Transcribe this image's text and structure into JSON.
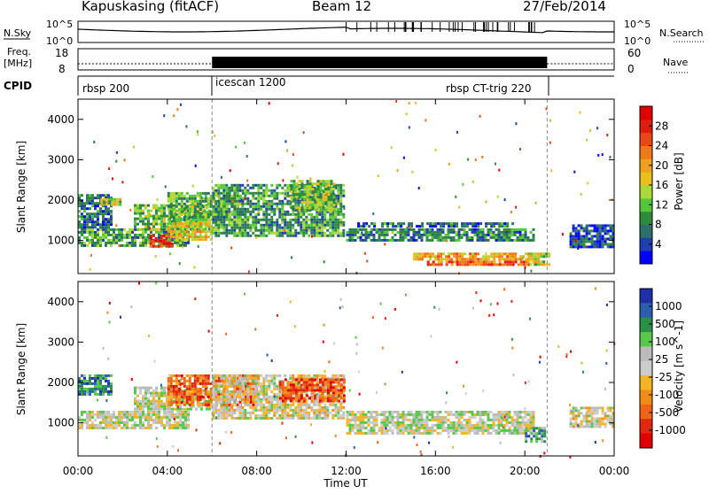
{
  "header": {
    "station": "Kapuskasing (fitACF)",
    "beam": "Beam 12",
    "date": "27/Feb/2014"
  },
  "top_panels": {
    "nsky_label": "N.Sky",
    "nsearch_label": "N.Search",
    "noise_ticks": [
      "10^5",
      "10^0"
    ],
    "freq_label": "Freq.",
    "freq_unit": "[MHz]",
    "freq_ticks": [
      "18",
      "8"
    ],
    "nave_label": "Nave",
    "nave_ticks": [
      "60",
      "0"
    ],
    "cpid_label": "CPID"
  },
  "cpid_segments": [
    {
      "name": "rbsp 200",
      "start_hour": 0,
      "end_hour": 6
    },
    {
      "name": "icescan 1200",
      "start_hour": 6,
      "end_hour": 21
    },
    {
      "name": "rbsp CT-trig 220",
      "start_hour": 6,
      "end_hour": 21
    }
  ],
  "chart_data": [
    {
      "type": "heatmap",
      "title": "Power",
      "xlabel": "",
      "ylabel": "Slant Range [km]",
      "x_ticks": [
        "00:00",
        "04:00",
        "08:00",
        "12:00",
        "16:00",
        "20:00",
        "00:00"
      ],
      "x_range_hours": [
        0,
        24
      ],
      "y_ticks": [
        1000,
        2000,
        3000,
        4000
      ],
      "ylim": [
        180,
        4500
      ],
      "colorbar": {
        "label": "Power [dB]",
        "ticks": [
          4,
          8,
          12,
          16,
          20,
          24,
          28
        ],
        "range": [
          0,
          32
        ],
        "colors": [
          "#0000ff",
          "#1f3fb0",
          "#2d6f6a",
          "#2e8b3a",
          "#54c83a",
          "#a8d83a",
          "#e8c01e",
          "#f0a020",
          "#f07818",
          "#e84818",
          "#e01c10",
          "#e00000"
        ]
      },
      "regions": [
        {
          "t0": 0.0,
          "t1": 5.0,
          "r0": 850,
          "r1": 1300,
          "level": 0.3
        },
        {
          "t0": 0.0,
          "t1": 1.5,
          "r0": 1300,
          "r1": 2150,
          "level": 0.2
        },
        {
          "t0": 1.0,
          "t1": 2.0,
          "r0": 1850,
          "r1": 2050,
          "level": 0.45
        },
        {
          "t0": 2.5,
          "t1": 6.0,
          "r0": 1250,
          "r1": 1900,
          "level": 0.4
        },
        {
          "t0": 3.2,
          "t1": 4.3,
          "r0": 800,
          "r1": 1150,
          "level": 0.9
        },
        {
          "t0": 4.0,
          "t1": 6.0,
          "r0": 1000,
          "r1": 1450,
          "level": 0.55
        },
        {
          "t0": 4.0,
          "t1": 7.5,
          "r0": 1500,
          "r1": 2200,
          "level": 0.35
        },
        {
          "t0": 6.0,
          "t1": 12.0,
          "r0": 1100,
          "r1": 2400,
          "level": 0.3
        },
        {
          "t0": 9.5,
          "t1": 11.5,
          "r0": 1700,
          "r1": 2500,
          "level": 0.4
        },
        {
          "t0": 12.0,
          "t1": 20.5,
          "r0": 950,
          "r1": 1300,
          "level": 0.25
        },
        {
          "t0": 12.5,
          "t1": 19.5,
          "r0": 1300,
          "r1": 1450,
          "level": 0.2
        },
        {
          "t0": 15.0,
          "t1": 20.5,
          "r0": 500,
          "r1": 700,
          "level": 0.6
        },
        {
          "t0": 15.5,
          "t1": 20.5,
          "r0": 380,
          "r1": 500,
          "level": 0.75
        },
        {
          "t0": 20.2,
          "t1": 21.2,
          "r0": 400,
          "r1": 700,
          "level": 0.45
        },
        {
          "t0": 22.0,
          "t1": 24.0,
          "r0": 800,
          "r1": 1400,
          "level": 0.15
        }
      ]
    },
    {
      "type": "heatmap",
      "title": "Velocity",
      "xlabel": "Time UT",
      "ylabel": "Slant Range [km]",
      "x_ticks": [
        "00:00",
        "04:00",
        "08:00",
        "12:00",
        "16:00",
        "20:00",
        "00:00"
      ],
      "x_range_hours": [
        0,
        24
      ],
      "y_ticks": [
        1000,
        2000,
        3000,
        4000
      ],
      "ylim": [
        180,
        4500
      ],
      "colorbar": {
        "label": "Velocity [m s^-1]",
        "ticks": [
          1000,
          500,
          100,
          25,
          -25,
          -100,
          -500,
          -1000
        ],
        "colors": [
          "#1e2fa8",
          "#2c5fb0",
          "#2e8f4a",
          "#58c84a",
          "#bbbbbb",
          "#cccccc",
          "#f5b428",
          "#f08c18",
          "#f06418",
          "#e02810",
          "#e00000"
        ]
      },
      "regions": [
        {
          "t0": 0.0,
          "t1": 5.0,
          "r0": 850,
          "r1": 1300,
          "level": 0.45
        },
        {
          "t0": 0.0,
          "t1": 1.5,
          "r0": 1700,
          "r1": 2200,
          "level": 0.2
        },
        {
          "t0": 2.5,
          "t1": 6.0,
          "r0": 1300,
          "r1": 1900,
          "level": 0.45
        },
        {
          "t0": 4.0,
          "t1": 8.0,
          "r0": 1400,
          "r1": 2200,
          "level": 0.75
        },
        {
          "t0": 6.0,
          "t1": 12.0,
          "r0": 1100,
          "r1": 2200,
          "level": 0.5
        },
        {
          "t0": 9.0,
          "t1": 12.0,
          "r0": 1500,
          "r1": 2100,
          "level": 0.8
        },
        {
          "t0": 12.0,
          "t1": 20.5,
          "r0": 700,
          "r1": 1300,
          "level": 0.45
        },
        {
          "t0": 20.0,
          "t1": 21.0,
          "r0": 500,
          "r1": 900,
          "level": 0.25
        },
        {
          "t0": 22.0,
          "t1": 24.0,
          "r0": 900,
          "r1": 1400,
          "level": 0.5
        }
      ]
    }
  ]
}
